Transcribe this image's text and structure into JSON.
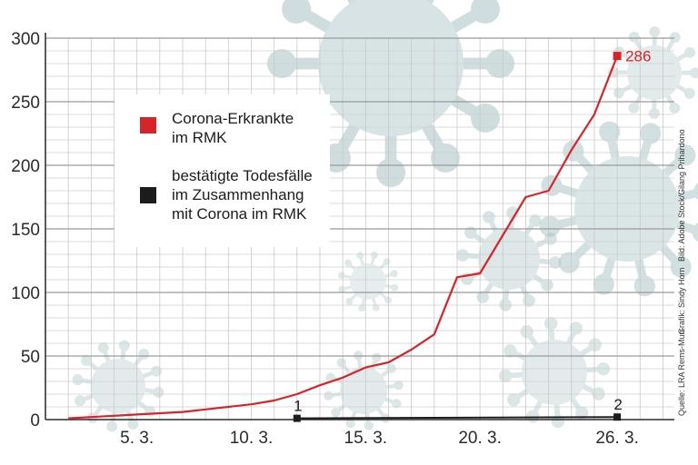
{
  "chart_data": {
    "type": "line",
    "ylim": [
      0,
      300
    ],
    "yticks": [
      0,
      50,
      100,
      150,
      200,
      250,
      300
    ],
    "xlim": [
      1,
      28.5
    ],
    "xticks": [
      {
        "day": 5,
        "label": "5. 3."
      },
      {
        "day": 10,
        "label": "10. 3."
      },
      {
        "day": 15,
        "label": "15. 3."
      },
      {
        "day": 20,
        "label": "20. 3."
      },
      {
        "day": 26,
        "label": "26. 3."
      }
    ],
    "series": [
      {
        "name": "Corona-Erkrankte im RMK",
        "name_lines": [
          "Corona-Erkrankte",
          "im RMK"
        ],
        "color": "#d7242a",
        "x": [
          2,
          3,
          4,
          5,
          6,
          7,
          8,
          9,
          10,
          11,
          12,
          13,
          14,
          15,
          16,
          17,
          18,
          19,
          20,
          21,
          22,
          23,
          24,
          25,
          26
        ],
        "values": [
          1,
          2,
          3,
          4,
          5,
          6,
          8,
          10,
          12,
          15,
          20,
          27,
          33,
          41,
          45,
          55,
          67,
          112,
          115,
          145,
          175,
          180,
          212,
          240,
          286
        ],
        "end_label": "286"
      },
      {
        "name": "bestätigte Todesfälle im Zusammenhang mit Corona im RMK",
        "name_lines": [
          "bestätigte Todesfälle",
          "im Zusammenhang",
          "mit Corona  im RMK"
        ],
        "color": "#1c1c1c",
        "x": [
          12,
          26
        ],
        "values": [
          1,
          2
        ],
        "point_labels": [
          "1",
          "2"
        ]
      }
    ],
    "grid": true,
    "legend_position": "top-left"
  },
  "credits": {
    "source": "Quelle: LRA Rems-Murr",
    "graphic": "Grafik: Sindy Horn",
    "image": "Bild: Adobe Stock/Gilang Prihardono"
  }
}
